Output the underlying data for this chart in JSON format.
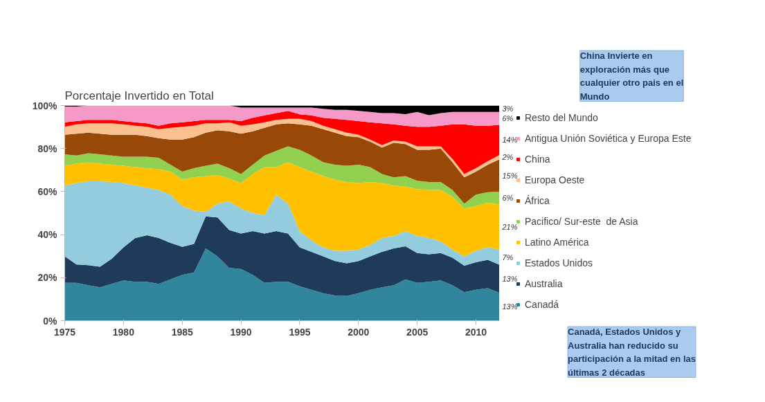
{
  "chart_data": {
    "type": "area",
    "stacked": true,
    "title": "Porcentaje Invertido en Total",
    "x": [
      1975,
      1976,
      1977,
      1978,
      1979,
      1980,
      1981,
      1982,
      1983,
      1984,
      1985,
      1986,
      1987,
      1988,
      1989,
      1990,
      1991,
      1992,
      1993,
      1994,
      1995,
      1996,
      1997,
      1998,
      1999,
      2000,
      2001,
      2002,
      2003,
      2004,
      2005,
      2006,
      2007,
      2008,
      2009,
      2010,
      2011,
      2012
    ],
    "xlim": [
      1975,
      2012
    ],
    "xticks": [
      1975,
      1980,
      1985,
      1990,
      1995,
      2000,
      2005,
      2010
    ],
    "ylim": [
      0,
      100
    ],
    "yticks": [
      {
        "value": 0,
        "label": "0%"
      },
      {
        "value": 20,
        "label": "20%"
      },
      {
        "value": 40,
        "label": "40%"
      },
      {
        "value": 60,
        "label": "60%"
      },
      {
        "value": 80,
        "label": "80%"
      },
      {
        "value": 100,
        "label": "100%"
      }
    ],
    "grid": false,
    "legend": "right",
    "series": [
      {
        "name": "Canadá",
        "color": "#31859c",
        "values": [
          17.6,
          17.6,
          16.5,
          15.5,
          17.1,
          18.7,
          18.1,
          18.1,
          17.1,
          19.2,
          21.3,
          22.4,
          33.6,
          29.9,
          24.5,
          24,
          21.3,
          17.6,
          18.1,
          18.1,
          16,
          14.4,
          12.8,
          11.7,
          11.5,
          12.8,
          14.4,
          15.5,
          16.5,
          19.2,
          17.6,
          18.1,
          18.7,
          16.5,
          13.3,
          14.4,
          15.1,
          13
        ],
        "value_labels": [
          null,
          null,
          null,
          null,
          null,
          null,
          null,
          null,
          null,
          null,
          null,
          null,
          null,
          null,
          null,
          null,
          null,
          null,
          null,
          null,
          null,
          null,
          null,
          null,
          null,
          null,
          null,
          null,
          null,
          null,
          null,
          null,
          null,
          null,
          null,
          null,
          null,
          "13%"
        ]
      },
      {
        "name": "Australia",
        "color": "#1f3b5c",
        "values": [
          12.3,
          8.5,
          9.3,
          9.6,
          11.7,
          15.4,
          20.3,
          21.6,
          21.3,
          17,
          13,
          13.3,
          14.9,
          18.1,
          17.6,
          16.5,
          20.3,
          22.9,
          23.5,
          22.4,
          18.1,
          17.6,
          17.1,
          16,
          15.2,
          14.9,
          15.5,
          16.5,
          17.1,
          15.4,
          13.8,
          12.8,
          12.7,
          12.8,
          12.3,
          12.8,
          13.2,
          13
        ],
        "value_labels": [
          null,
          null,
          null,
          null,
          null,
          null,
          null,
          null,
          null,
          null,
          null,
          null,
          null,
          null,
          null,
          null,
          null,
          null,
          null,
          null,
          null,
          null,
          null,
          null,
          null,
          null,
          null,
          null,
          null,
          null,
          null,
          null,
          null,
          null,
          null,
          null,
          null,
          "13%"
        ]
      },
      {
        "name": "Estados Unidos",
        "color": "#93cddd",
        "values": [
          33,
          37.9,
          39,
          39.7,
          35.7,
          29.9,
          24.5,
          22.1,
          22.4,
          22.4,
          19,
          15.5,
          2.1,
          6.4,
          13.3,
          11.7,
          8.5,
          8.5,
          17,
          13.9,
          7.5,
          5.3,
          4.2,
          4.8,
          5.8,
          5.3,
          5.3,
          6.4,
          5.8,
          7,
          8,
          7.5,
          5.4,
          3.7,
          4.3,
          5.3,
          5.8,
          7
        ],
        "value_labels": [
          null,
          null,
          null,
          null,
          null,
          null,
          null,
          null,
          null,
          null,
          null,
          null,
          null,
          null,
          null,
          null,
          null,
          null,
          null,
          null,
          null,
          null,
          null,
          null,
          null,
          null,
          null,
          null,
          null,
          null,
          null,
          null,
          null,
          null,
          null,
          null,
          null,
          "7%"
        ]
      },
      {
        "name": "Latino América",
        "color": "#ffc000",
        "values": [
          9.1,
          9,
          8.8,
          8.2,
          8,
          8,
          8.5,
          9.1,
          9.6,
          10.7,
          12.3,
          15.4,
          16.6,
          13.3,
          10.7,
          11.8,
          18.1,
          22.4,
          12.8,
          19.2,
          29.8,
          32,
          33.1,
          33.1,
          32,
          31,
          29.3,
          25.6,
          23.5,
          20.7,
          21.8,
          22.4,
          24,
          24.6,
          22.3,
          20.8,
          20.8,
          21
        ],
        "value_labels": [
          null,
          null,
          null,
          null,
          null,
          null,
          null,
          null,
          null,
          null,
          null,
          null,
          null,
          null,
          null,
          null,
          null,
          null,
          null,
          null,
          null,
          null,
          null,
          null,
          null,
          null,
          null,
          null,
          null,
          null,
          null,
          null,
          null,
          null,
          null,
          null,
          null,
          "21%"
        ]
      },
      {
        "name": "Pacifico/ Sur-este  de Asia",
        "color": "#92d050",
        "values": [
          5.3,
          3.8,
          4.2,
          4.3,
          4.3,
          4.2,
          4.8,
          5.3,
          5.3,
          3.2,
          3.7,
          4.3,
          4.8,
          5.3,
          4.8,
          4.2,
          4.3,
          5.4,
          7.5,
          7.4,
          8,
          7.5,
          6.4,
          6.9,
          7.5,
          8.5,
          6.9,
          4.2,
          3.7,
          4.9,
          3.8,
          3.7,
          3.7,
          3.2,
          2.2,
          5.3,
          4.8,
          6
        ],
        "value_labels": [
          null,
          null,
          null,
          null,
          null,
          null,
          null,
          null,
          null,
          null,
          null,
          null,
          null,
          null,
          null,
          null,
          null,
          null,
          null,
          null,
          null,
          null,
          null,
          null,
          null,
          null,
          null,
          null,
          null,
          null,
          null,
          null,
          null,
          null,
          null,
          null,
          null,
          "6%"
        ]
      },
      {
        "name": "África",
        "color": "#984807",
        "values": [
          9.1,
          10.1,
          9.6,
          9.6,
          9.6,
          10.2,
          10.2,
          9.6,
          9.1,
          11.7,
          14.9,
          14.4,
          15.4,
          15.5,
          17.1,
          18.7,
          15.5,
          12.8,
          12.3,
          10.7,
          11.8,
          13.8,
          15.4,
          14.9,
          13.8,
          12.8,
          11.8,
          12.3,
          16.1,
          14.9,
          14.4,
          14.9,
          15.5,
          12.8,
          12.2,
          10.7,
          12.8,
          15
        ],
        "value_labels": [
          null,
          null,
          null,
          null,
          null,
          null,
          null,
          null,
          null,
          null,
          null,
          null,
          null,
          null,
          null,
          null,
          null,
          null,
          null,
          null,
          null,
          null,
          null,
          null,
          null,
          null,
          null,
          null,
          null,
          null,
          null,
          null,
          null,
          null,
          null,
          null,
          null,
          "15%"
        ]
      },
      {
        "name": "Europa Oeste",
        "color": "#fac090",
        "values": [
          3.7,
          4.3,
          4.3,
          4.8,
          5.3,
          4.8,
          4.2,
          4.3,
          4.2,
          5.4,
          5.9,
          5.3,
          4.3,
          3.2,
          4.2,
          3.7,
          3.2,
          2.6,
          2.1,
          2.1,
          2.6,
          2.2,
          1.6,
          1.6,
          1.6,
          1.1,
          1,
          1.1,
          1.1,
          1.1,
          1.6,
          1.6,
          1,
          1.6,
          1.6,
          1.6,
          1.6,
          2
        ],
        "value_labels": [
          null,
          null,
          null,
          null,
          null,
          null,
          null,
          null,
          null,
          null,
          null,
          null,
          null,
          null,
          null,
          null,
          null,
          null,
          null,
          null,
          null,
          null,
          null,
          null,
          null,
          null,
          null,
          null,
          null,
          null,
          null,
          null,
          null,
          null,
          null,
          null,
          null,
          "2%"
        ]
      },
      {
        "name": "China",
        "color": "#ff0000",
        "values": [
          2.1,
          1.6,
          1.6,
          1.6,
          1.6,
          1.6,
          1.6,
          1.6,
          1.6,
          2.1,
          2.1,
          2.2,
          1.6,
          1.6,
          1.1,
          2.2,
          3.1,
          3.2,
          3.2,
          3.7,
          2.1,
          2.6,
          3.7,
          4.8,
          5.9,
          6.4,
          8,
          10.1,
          7.4,
          7.4,
          9.1,
          9.1,
          9.6,
          16,
          23,
          19.7,
          16.5,
          14
        ],
        "value_labels": [
          null,
          null,
          null,
          null,
          null,
          null,
          null,
          null,
          null,
          null,
          null,
          null,
          null,
          null,
          null,
          null,
          null,
          null,
          null,
          null,
          null,
          null,
          null,
          null,
          null,
          null,
          null,
          null,
          null,
          null,
          null,
          null,
          null,
          null,
          null,
          null,
          null,
          "14%"
        ]
      },
      {
        "name": "Antigua Unión Soviética y Europa Este",
        "color": "#f59ac8",
        "values": [
          7.3,
          6.7,
          6.7,
          6.7,
          6.7,
          7.2,
          7.8,
          8.3,
          9.4,
          8.3,
          7.8,
          7.2,
          6.7,
          6.7,
          6.7,
          6.2,
          4.7,
          3.6,
          2.5,
          1.5,
          3.1,
          3.6,
          4.2,
          4.2,
          4.7,
          4.7,
          4.8,
          4.8,
          5.3,
          5.4,
          6.9,
          5.4,
          5.9,
          5.8,
          5.8,
          6.4,
          6.4,
          6
        ],
        "value_labels": [
          null,
          null,
          null,
          null,
          null,
          null,
          null,
          null,
          null,
          null,
          null,
          null,
          null,
          null,
          null,
          null,
          null,
          null,
          null,
          null,
          null,
          null,
          null,
          null,
          null,
          null,
          null,
          null,
          null,
          null,
          null,
          null,
          null,
          null,
          null,
          null,
          null,
          "6%"
        ]
      },
      {
        "name": "Resto del Mundo",
        "color": "#000000",
        "values": [
          0.5,
          0.5,
          0,
          0,
          0,
          0,
          0,
          0,
          0,
          0,
          0,
          0,
          0,
          0,
          0,
          1,
          1,
          1,
          1,
          1,
          1,
          1,
          1.5,
          2,
          2,
          2.5,
          3,
          3.5,
          3.5,
          4,
          3,
          4.5,
          3.5,
          3,
          3,
          3,
          3,
          3
        ],
        "value_labels": [
          null,
          null,
          null,
          null,
          null,
          null,
          null,
          null,
          null,
          null,
          null,
          null,
          null,
          null,
          null,
          null,
          null,
          null,
          null,
          null,
          null,
          null,
          null,
          null,
          null,
          null,
          null,
          null,
          null,
          null,
          null,
          null,
          null,
          null,
          null,
          null,
          null,
          "3%"
        ]
      }
    ],
    "annotations": [
      "China Invierte en exploración más que cualquier otro pais en el Mundo",
      "Canadá, Estados Unidos y Australia han reducido su participación a la mitad en las últimas 2 décadas"
    ]
  }
}
